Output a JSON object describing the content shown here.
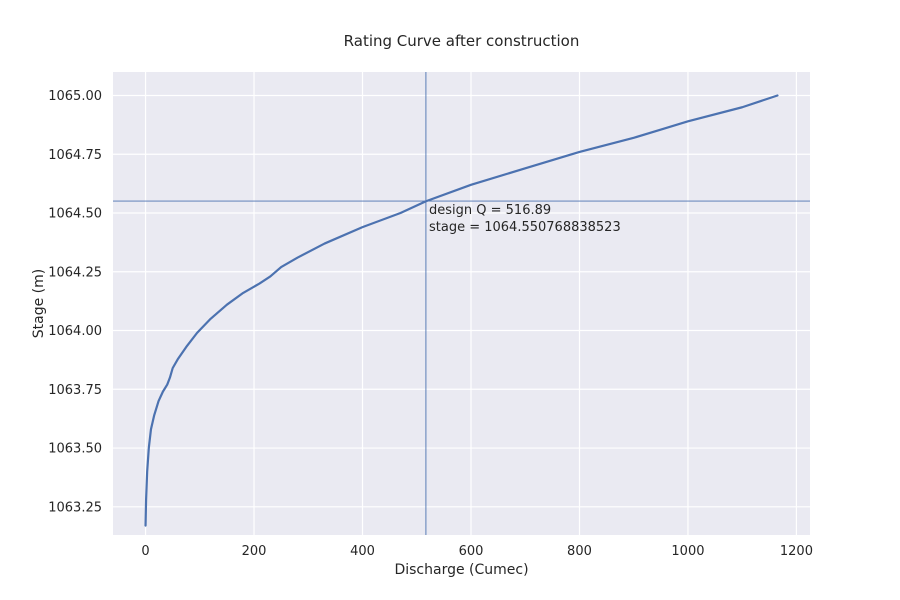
{
  "chart_data": {
    "type": "line",
    "title": "Rating Curve after construction",
    "xlabel": "Discharge (Cumec)",
    "ylabel": "Stage (m)",
    "xlim": [
      -60,
      1225
    ],
    "ylim": [
      1063.13,
      1065.1
    ],
    "xticks": [
      0,
      200,
      400,
      600,
      800,
      1000,
      1200
    ],
    "xtick_labels": [
      "0",
      "200",
      "400",
      "600",
      "800",
      "1000",
      "1200"
    ],
    "yticks": [
      1063.25,
      1063.5,
      1063.75,
      1064.0,
      1064.25,
      1064.5,
      1064.75,
      1065.0
    ],
    "ytick_labels": [
      "1063.25",
      "1063.50",
      "1063.75",
      "1064.00",
      "1064.25",
      "1064.50",
      "1064.75",
      "1065.00"
    ],
    "grid": true,
    "background": "#eaeaf2",
    "series": [
      {
        "color": "#4c72b0",
        "points": [
          [
            0,
            1063.17
          ],
          [
            1,
            1063.28
          ],
          [
            3,
            1063.4
          ],
          [
            6,
            1063.5
          ],
          [
            10,
            1063.58
          ],
          [
            16,
            1063.64
          ],
          [
            24,
            1063.7
          ],
          [
            32,
            1063.74
          ],
          [
            40,
            1063.77
          ],
          [
            45,
            1063.8
          ],
          [
            50,
            1063.84
          ],
          [
            60,
            1063.88
          ],
          [
            75,
            1063.93
          ],
          [
            95,
            1063.99
          ],
          [
            120,
            1064.05
          ],
          [
            150,
            1064.11
          ],
          [
            180,
            1064.16
          ],
          [
            210,
            1064.2
          ],
          [
            230,
            1064.23
          ],
          [
            250,
            1064.27
          ],
          [
            280,
            1064.31
          ],
          [
            330,
            1064.37
          ],
          [
            400,
            1064.44
          ],
          [
            470,
            1064.5
          ],
          [
            517,
            1064.55
          ],
          [
            600,
            1064.62
          ],
          [
            700,
            1064.69
          ],
          [
            800,
            1064.76
          ],
          [
            900,
            1064.82
          ],
          [
            1000,
            1064.89
          ],
          [
            1100,
            1064.95
          ],
          [
            1165,
            1065.0
          ]
        ]
      }
    ],
    "marker_lines": {
      "x": 516.89,
      "y": 1064.550768838523,
      "color": "#4c72b0"
    },
    "annotation": {
      "line1": "design Q = 516.89",
      "line2": "stage = 1064.550768838523"
    }
  }
}
